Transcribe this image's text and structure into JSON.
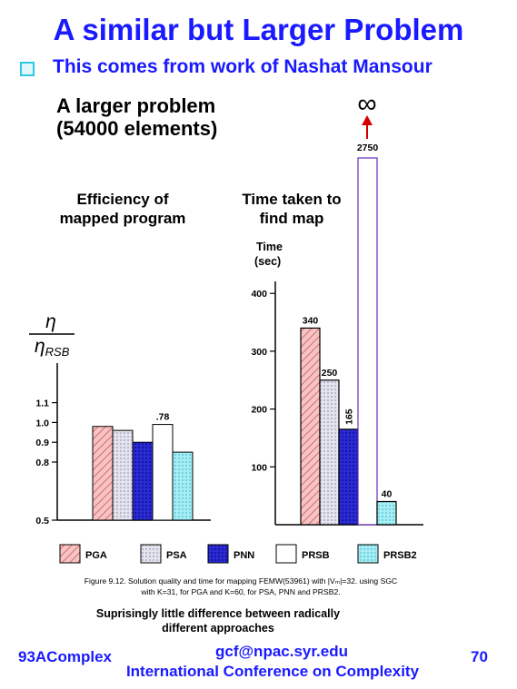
{
  "slide": {
    "title": "A similar but Larger Problem",
    "bullet": "This comes from work of Nashat Mansour",
    "heading_line1": "A larger problem",
    "heading_line2": "(54000 elements)",
    "left_heading_line1": "Efficiency of",
    "left_heading_line2": "mapped program",
    "right_heading_line1": "Time taken to",
    "right_heading_line2": "find map",
    "infinity_symbol": "∞",
    "caption_line1": "Figure 9.12. Solution quality and time for mapping FEMW(53961) with |Vₘ|=32. using SGC",
    "caption_line2": "with K=31, for PGA and K=60, for PSA, PNN and PRSB2.",
    "note_line1": "Suprisingly little difference between radically",
    "note_line2": "different approaches",
    "footer_left": "93AComplex",
    "footer_center_line1": "gcf@npac.syr.edu",
    "footer_center_line2": "International Conference on Complexity",
    "footer_page": "70"
  },
  "chart_data": [
    {
      "type": "bar",
      "ylabel": "η / η_RSB",
      "ylabel_num": "η",
      "ylabel_den": "η",
      "ylabel_den_sub": "RSB",
      "y_ticks": [
        0.5,
        0.8,
        0.9,
        1.0,
        1.1
      ],
      "y_tick_labels": [
        "0.5",
        "0.8",
        "0.9",
        "1.0",
        "1.1"
      ],
      "categories": [
        "PGA",
        "PSA",
        "PNN",
        "PRSB",
        "PRSB2"
      ],
      "values": [
        0.98,
        0.96,
        0.9,
        0.99,
        0.85
      ],
      "data_labels": [
        "",
        "",
        "",
        ".78",
        ""
      ]
    },
    {
      "type": "bar",
      "ylabel_line1": "Time",
      "ylabel_line2": "(sec)",
      "ylim": [
        0,
        400
      ],
      "y_ticks": [
        100,
        200,
        300,
        400
      ],
      "y_tick_labels": [
        "100",
        "200",
        "300",
        "400"
      ],
      "categories": [
        "PGA",
        "PSA",
        "PNN",
        "PRSB",
        "PRSB2"
      ],
      "values": [
        340,
        250,
        165,
        2750,
        40
      ],
      "data_labels": [
        "340",
        "250",
        "165",
        "2750",
        "40"
      ]
    }
  ],
  "legend": [
    {
      "label": "PGA",
      "color": "#f2a8a8"
    },
    {
      "label": "PSA",
      "color": "#d9d9e8"
    },
    {
      "label": "PNN",
      "color": "#2b2bd6"
    },
    {
      "label": "PRSB",
      "color": "#ffffff"
    },
    {
      "label": "PRSB2",
      "color": "#8fe6ee"
    }
  ],
  "colors": {
    "title": "#1a1aff",
    "bullet": "#2fc7e6",
    "arrow": "#d40000"
  }
}
